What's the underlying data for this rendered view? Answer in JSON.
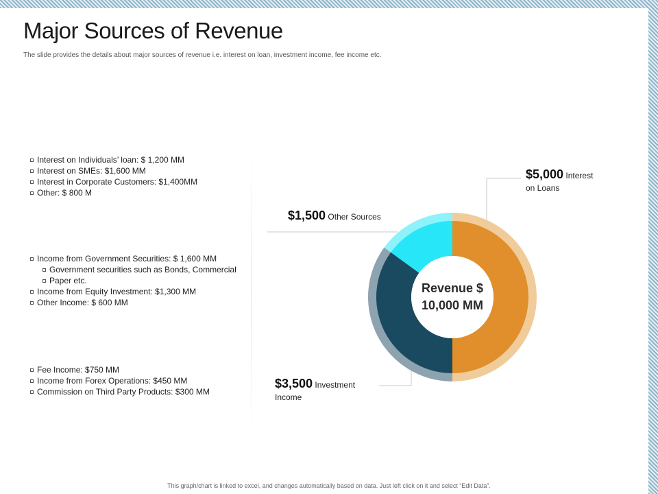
{
  "header": {
    "title": "Major Sources of Revenue",
    "subtitle": "The slide provides the details about major sources of revenue i.e. interest on loan, investment income, fee income etc."
  },
  "groups": [
    {
      "items": [
        {
          "text": "Interest on Individuals’ loan: $ 1,200 MM"
        },
        {
          "text": "Interest on SMEs: $1,600 MM"
        },
        {
          "text": "Interest in Corporate Customers: $1,400MM"
        },
        {
          "text": "Other: $ 800 M"
        }
      ]
    },
    {
      "items": [
        {
          "text": "Income from Government Securities: $ 1,600 MM"
        },
        {
          "text": "Government securities such as Bonds, Commercial",
          "sub": true
        },
        {
          "text": "Paper etc.",
          "sub": true,
          "cont": true
        },
        {
          "text": "Income from Equity Investment: $1,300 MM"
        },
        {
          "text": "Other Income: $ 600 MM"
        }
      ]
    },
    {
      "items": [
        {
          "text": "Fee Income: $750 MM"
        },
        {
          "text": "Income from Forex Operations: $450 MM"
        },
        {
          "text": "Commission on Third Party Products: $300 MM"
        }
      ]
    }
  ],
  "chart_data": {
    "type": "pie",
    "center_label": [
      "Revenue $",
      "10,000 MM"
    ],
    "series": [
      {
        "value_label": "$5,000",
        "label_line1": "Interest",
        "label_line2": "on Loans",
        "value": 5000,
        "color": "#e08f2c",
        "outer_color": "#f0cc9a"
      },
      {
        "value_label": "$3,500",
        "label_line1": "Investment",
        "label_line2": "Income",
        "value": 3500,
        "color": "#1a4a60",
        "outer_color": "#8da3af"
      },
      {
        "value_label": "$1,500",
        "label_line1": "Other Sources",
        "label_line2": "",
        "value": 1500,
        "color": "#27e6f7",
        "outer_color": "#8ef2fb"
      }
    ]
  },
  "footer": "This graph/chart is linked to excel, and changes automatically based on data. Just left click on it and select “Edit Data”."
}
